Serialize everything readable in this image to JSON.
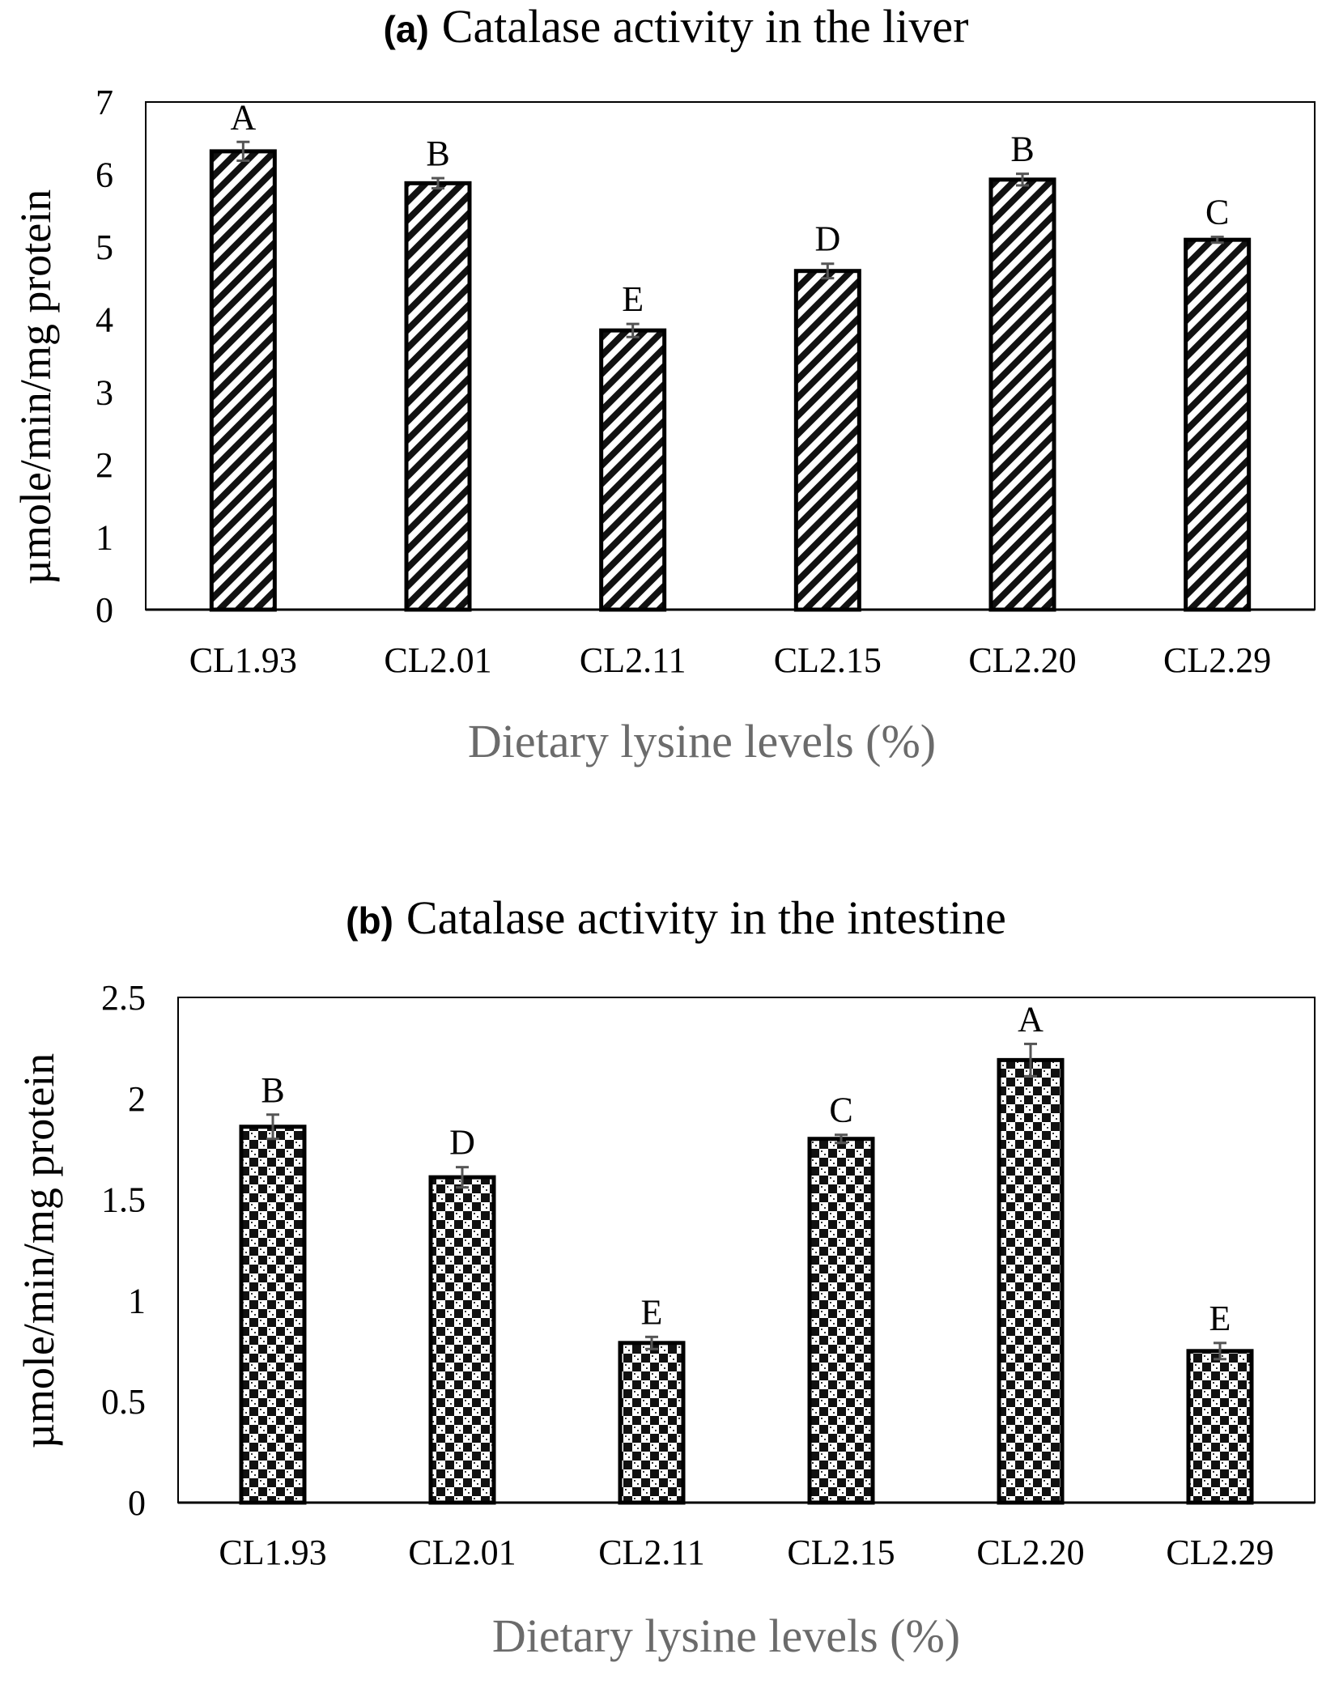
{
  "chart_data": [
    {
      "type": "bar",
      "panel_tag": "(a)",
      "title": "Catalase activity in the liver",
      "xlabel": "Dietary lysine levels (%)",
      "ylabel": "µmole/min/mg protein",
      "categories": [
        "CL1.93",
        "CL2.01",
        "CL2.11",
        "CL2.15",
        "CL2.20",
        "CL2.29"
      ],
      "values": [
        6.32,
        5.88,
        3.85,
        4.67,
        5.93,
        5.1
      ],
      "errors": [
        0.13,
        0.07,
        0.09,
        0.1,
        0.08,
        0.04
      ],
      "significance_labels": [
        "A",
        "B",
        "E",
        "D",
        "B",
        "C"
      ],
      "ylim": [
        0,
        7
      ],
      "yticks": [
        "0",
        "1",
        "2",
        "3",
        "4",
        "5",
        "6",
        "7"
      ],
      "pattern": "diagonal-stripes",
      "grid": false
    },
    {
      "type": "bar",
      "panel_tag": "(b)",
      "title": "Catalase activity in the intestine",
      "xlabel": "Dietary lysine levels (%)",
      "ylabel": "µmole/min/mg protein",
      "categories": [
        "CL1.93",
        "CL2.01",
        "CL2.11",
        "CL2.15",
        "CL2.20",
        "CL2.29"
      ],
      "values": [
        1.86,
        1.61,
        0.79,
        1.8,
        2.19,
        0.75
      ],
      "errors": [
        0.06,
        0.05,
        0.03,
        0.02,
        0.08,
        0.04
      ],
      "significance_labels": [
        "B",
        "D",
        "E",
        "C",
        "A",
        "E"
      ],
      "ylim": [
        0,
        2.5
      ],
      "yticks": [
        "0",
        "0.5",
        "1",
        "1.5",
        "2",
        "2.5"
      ],
      "pattern": "checkered",
      "grid": false
    }
  ]
}
